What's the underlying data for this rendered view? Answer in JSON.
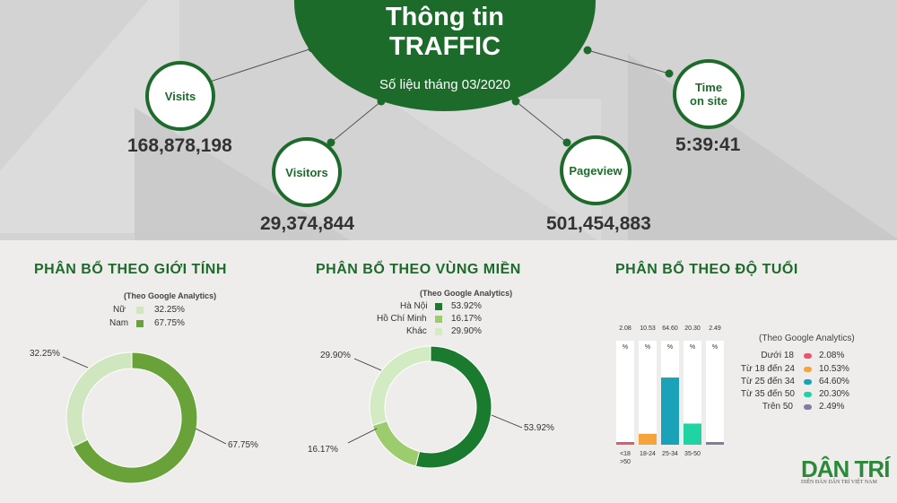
{
  "header": {
    "title_line1": "Thông tin",
    "title_line2": "TRAFFIC",
    "subtitle": "Số liệu tháng 03/2020"
  },
  "metrics": {
    "visits": {
      "label": "Visits",
      "value": "168,878,198"
    },
    "visitors": {
      "label": "Visitors",
      "value": "29,374,844"
    },
    "pageview": {
      "label": "Pageview",
      "value": "501,454,883"
    },
    "time_on_site": {
      "label_line1": "Time",
      "label_line2": "on site",
      "value": "5:39:41"
    }
  },
  "colors": {
    "brand_green": "#1d6b2b",
    "gender_light": "#cfe6bf",
    "gender_dark": "#6aa23a",
    "region_dark": "#1a7a2e",
    "region_mid": "#9ccc6e",
    "region_light": "#d3ebc3"
  },
  "chart_data": [
    {
      "type": "pie",
      "title": "PHÂN BỔ THEO GIỚI  TÍNH",
      "note": "(Theo Google Analytics)",
      "categories": [
        "Nữ",
        "Nam"
      ],
      "values": [
        32.25,
        67.75
      ],
      "value_labels": [
        "32.25%",
        "67.75%"
      ],
      "colors": [
        "#cfe6bf",
        "#6aa23a"
      ]
    },
    {
      "type": "pie",
      "title": "PHÂN BỔ THEO VÙNG MIỀN",
      "note": "(Theo Google Analytics)",
      "categories": [
        "Hà Nội",
        "Hồ Chí Minh",
        "Khác"
      ],
      "values": [
        53.92,
        16.17,
        29.9
      ],
      "value_labels": [
        "53.92%",
        "16.17%",
        "29.90%"
      ],
      "colors": [
        "#1a7a2e",
        "#9ccc6e",
        "#d3ebc3"
      ]
    },
    {
      "type": "bar",
      "title": "PHÂN BỔ THEO ĐỘ TUỔI",
      "note": "(Theo Google Analytics)",
      "categories": [
        "Dưới 18",
        "Từ 18 đến 24",
        "Từ 25 đến 34",
        "Từ 35 đến 50",
        "Trên 50"
      ],
      "tick_labels": [
        "<18 >50",
        "18-24",
        "25-34",
        "35-50",
        ""
      ],
      "top_labels": [
        "2.08",
        "10.53",
        "64.60",
        "20.30",
        "2.49"
      ],
      "unit_label": "%",
      "values": [
        2.08,
        10.53,
        64.6,
        20.3,
        2.49
      ],
      "value_labels": [
        "2.08%",
        "10.53%",
        "64.60%",
        "20.30%",
        "2.49%"
      ],
      "colors": [
        "#e8556e",
        "#f5a33c",
        "#1aa3b8",
        "#20d3a3",
        "#7e7ea3"
      ],
      "ylim": [
        0,
        100
      ]
    }
  ],
  "logo": {
    "text": "DÂN TRÍ",
    "tagline": "DIỄN ĐÀN DÂN TRÍ VIỆT NAM"
  }
}
